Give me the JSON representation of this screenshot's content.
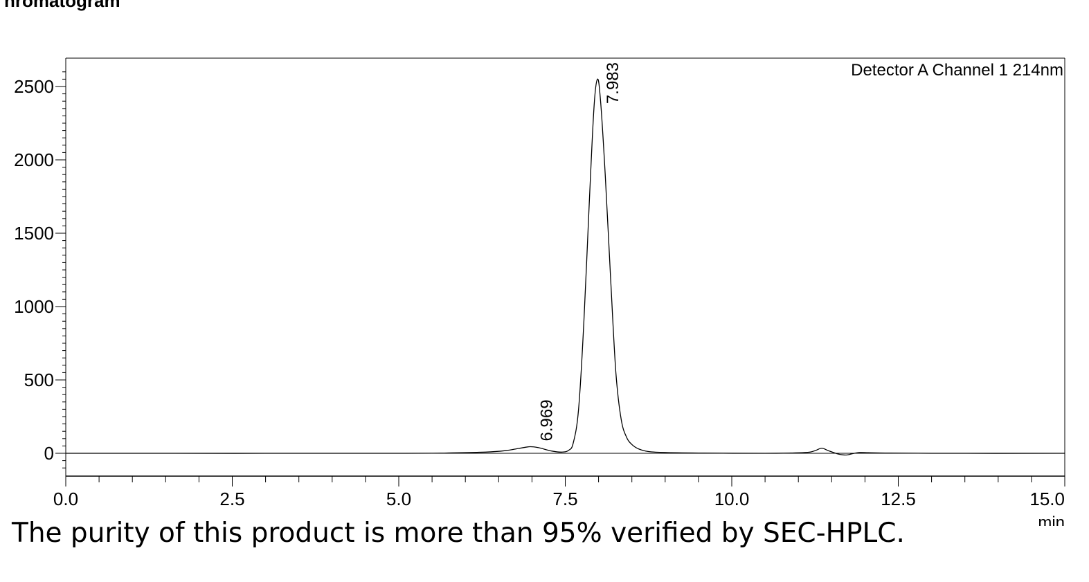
{
  "header_fragment": "hromatogram",
  "caption": "The purity of this product is more than 95% verified by SEC-HPLC.",
  "chart_data": {
    "type": "line",
    "title": "",
    "detector_label": "Detector A Channel 1 214nm",
    "xlabel": "min",
    "ylabel": "",
    "xlim": [
      0,
      15
    ],
    "ylim": [
      -150,
      2700
    ],
    "x_ticks": [
      "0.0",
      "2.5",
      "5.0",
      "7.5",
      "10.0",
      "12.5",
      "15.0"
    ],
    "y_ticks": [
      "0",
      "500",
      "1000",
      "1500",
      "2000",
      "2500"
    ],
    "grid": false,
    "baseline": 0,
    "series": [
      {
        "x": [
          0,
          5.0,
          5.8,
          6.3,
          6.6,
          6.8,
          6.969,
          7.1,
          7.3,
          7.45,
          7.55,
          7.62,
          7.7,
          7.78,
          7.86,
          7.93,
          7.983,
          8.03,
          8.1,
          8.18,
          8.26,
          8.34,
          8.42,
          8.5,
          8.6,
          8.75,
          9.0,
          9.5,
          10.5,
          11.1,
          11.25,
          11.35,
          11.45,
          11.6,
          11.72,
          11.82,
          11.92,
          12.05,
          12.3,
          13.0,
          15.0
        ],
        "y": [
          0,
          0,
          3,
          8,
          18,
          33,
          45,
          38,
          15,
          8,
          20,
          70,
          300,
          900,
          1700,
          2350,
          2550,
          2400,
          1900,
          1200,
          550,
          230,
          110,
          60,
          30,
          12,
          5,
          2,
          0,
          5,
          18,
          35,
          18,
          -5,
          -12,
          -2,
          5,
          4,
          2,
          0,
          0
        ]
      }
    ],
    "peaks": [
      {
        "time": 6.969,
        "label": "6.969",
        "height": 45
      },
      {
        "time": 7.983,
        "label": "7.983",
        "height": 2550
      }
    ]
  }
}
